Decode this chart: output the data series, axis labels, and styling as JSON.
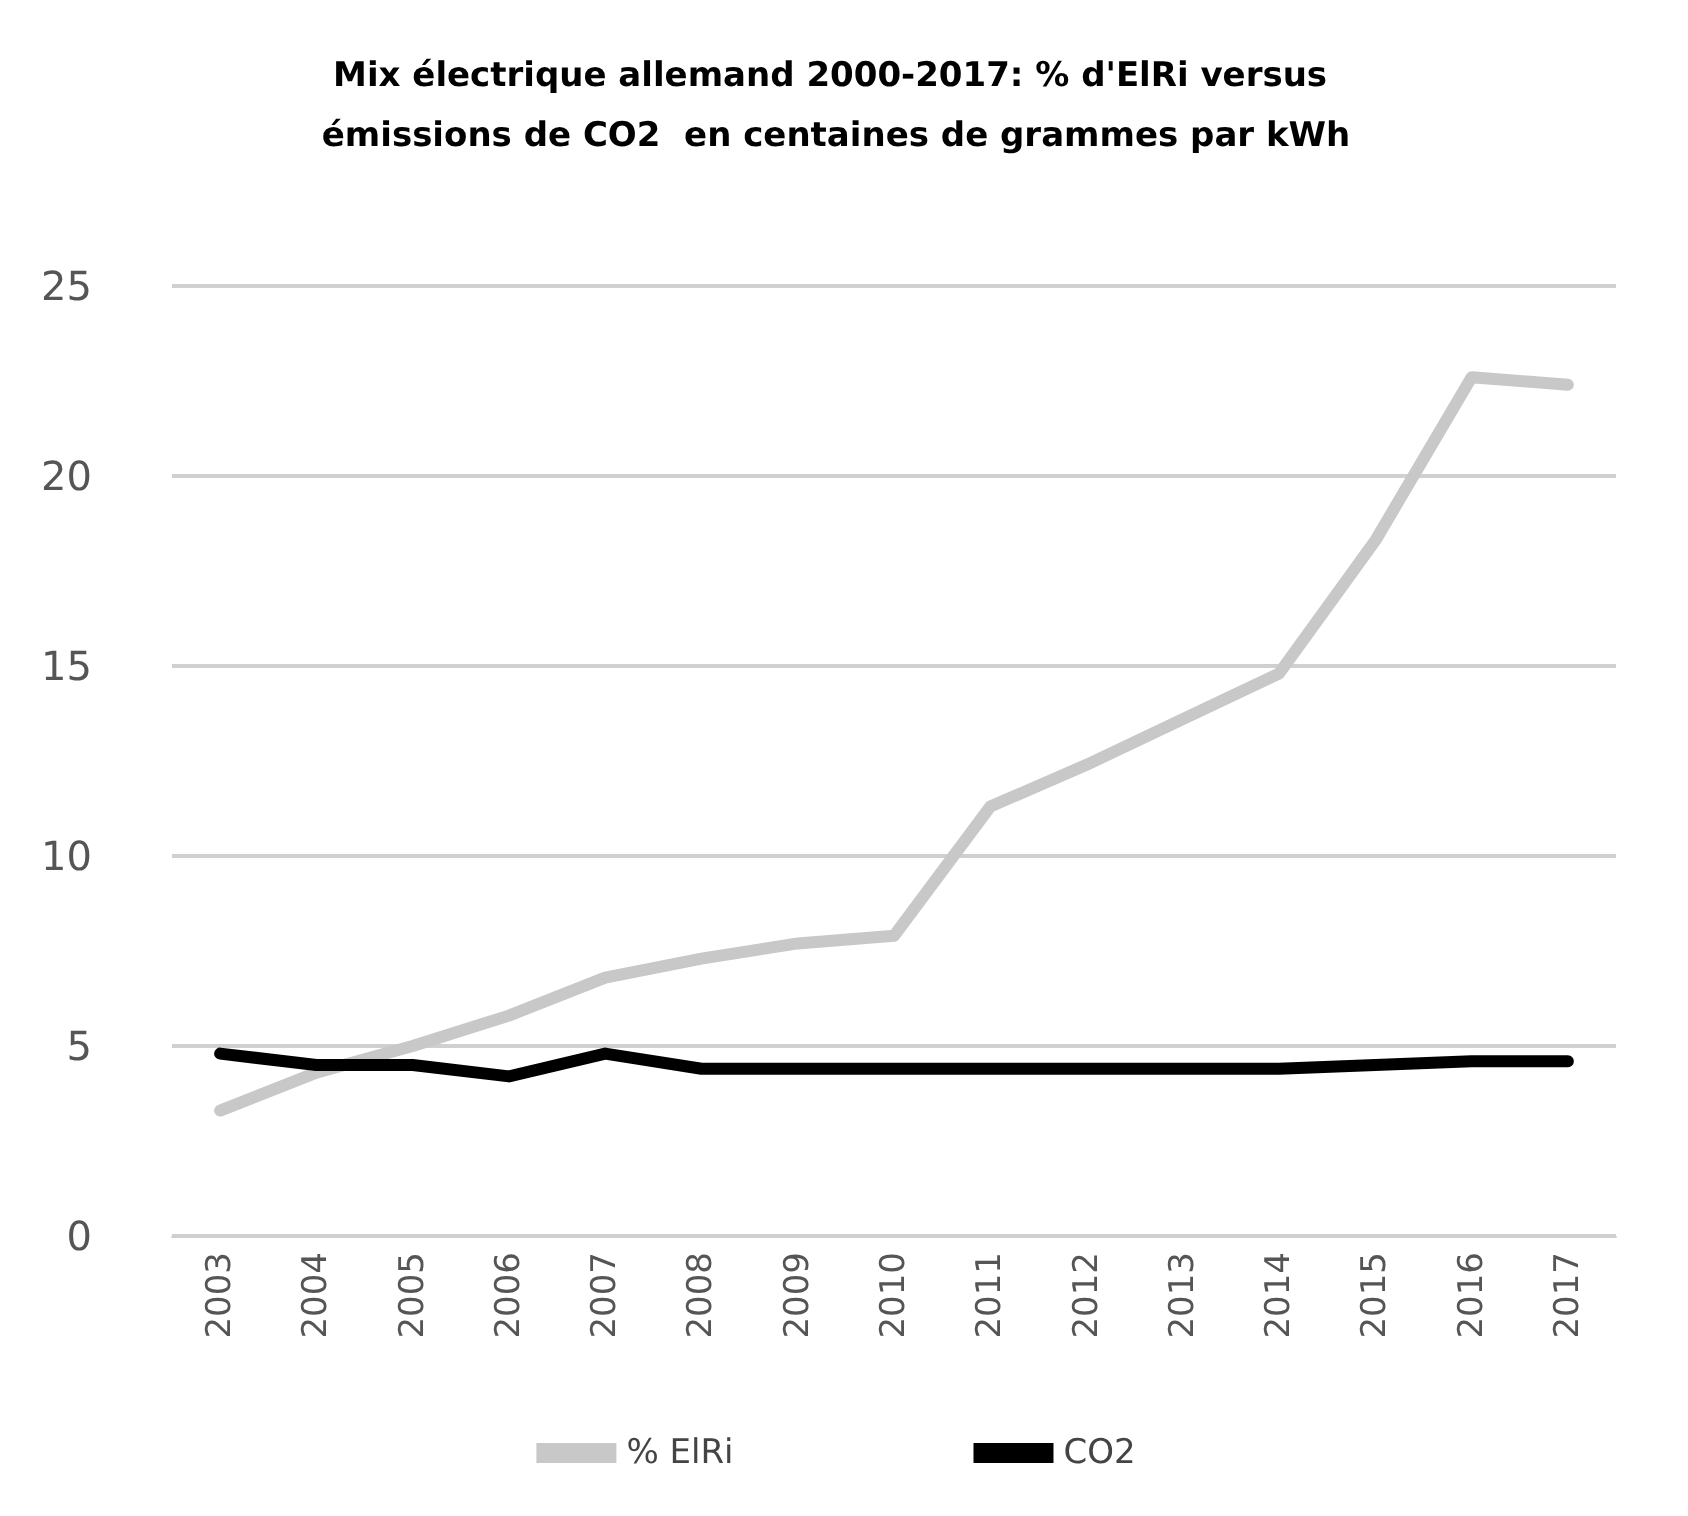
{
  "chart_data": {
    "type": "line",
    "title": "Mix électrique allemand 2000-2017: % d'ElRi versus émissions de CO2  en centaines de grammes par kWh",
    "categories": [
      "2003",
      "2004",
      "2005",
      "2006",
      "2007",
      "2008",
      "2009",
      "2010",
      "2011",
      "2012",
      "2013",
      "2014",
      "2015",
      "2016",
      "2017"
    ],
    "series": [
      {
        "name": "% ElRi",
        "color": "#c8c8c8",
        "values": [
          3.3,
          4.3,
          5.0,
          5.8,
          6.8,
          7.3,
          7.7,
          7.9,
          11.3,
          12.4,
          13.6,
          14.8,
          18.3,
          22.6,
          22.4
        ]
      },
      {
        "name": "CO2",
        "color": "#000000",
        "values": [
          4.8,
          4.5,
          4.5,
          4.2,
          4.8,
          4.4,
          4.4,
          4.4,
          4.4,
          4.4,
          4.4,
          4.4,
          4.5,
          4.6,
          4.6
        ]
      }
    ],
    "ylim": [
      0,
      25
    ],
    "yticks": [
      0,
      5,
      10,
      15,
      20,
      25
    ],
    "grid": "y",
    "legend": "bottom",
    "marker": "none",
    "line_style": "solid"
  }
}
